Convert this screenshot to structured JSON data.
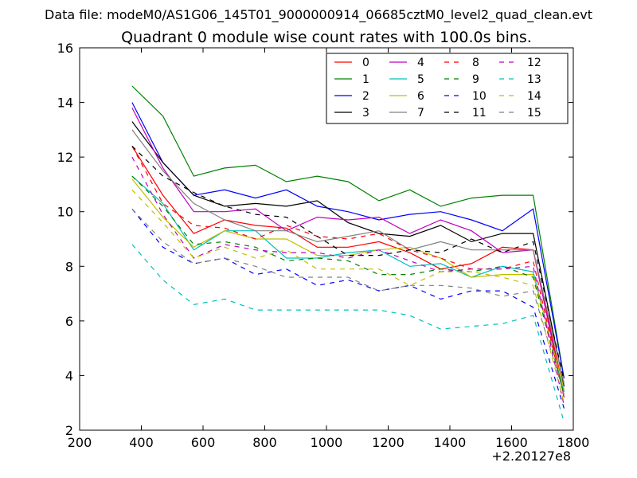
{
  "chart_data": {
    "type": "line",
    "suptitle": "Data file: modeM0/AS1G06_145T01_9000000914_06685cztM0_level2_quad_clean.evt",
    "title": "Quadrant 0 module wise count rates with 100.0s bins.",
    "xlabel": "",
    "ylabel": "",
    "x_offset_label": "+2.20127e8",
    "xlim": [
      200,
      1800
    ],
    "ylim": [
      2,
      16
    ],
    "x_ticks": [
      200,
      400,
      600,
      800,
      1000,
      1200,
      1400,
      1600,
      1800
    ],
    "y_ticks": [
      2,
      4,
      6,
      8,
      10,
      12,
      14,
      16
    ],
    "legend_position": "top-right",
    "legend_columns": 4,
    "x": [
      370,
      470,
      570,
      670,
      770,
      870,
      970,
      1070,
      1170,
      1270,
      1370,
      1470,
      1570,
      1670,
      1770
    ],
    "series": [
      {
        "name": "0",
        "color": "#ff0000",
        "dash": "solid",
        "values": [
          12.4,
          10.6,
          9.2,
          9.7,
          9.5,
          9.4,
          8.7,
          8.7,
          8.9,
          8.5,
          7.9,
          8.1,
          8.7,
          8.6,
          3.4
        ]
      },
      {
        "name": "1",
        "color": "#008000",
        "dash": "solid",
        "values": [
          14.6,
          13.5,
          11.3,
          11.6,
          11.7,
          11.1,
          11.3,
          11.1,
          10.4,
          10.8,
          10.2,
          10.5,
          10.6,
          10.6,
          3.9
        ]
      },
      {
        "name": "2",
        "color": "#0000ff",
        "dash": "solid",
        "values": [
          14.0,
          11.8,
          10.6,
          10.8,
          10.5,
          10.8,
          10.2,
          10.0,
          9.7,
          9.9,
          10.0,
          9.7,
          9.3,
          10.1,
          3.9
        ]
      },
      {
        "name": "3",
        "color": "#000000",
        "dash": "solid",
        "values": [
          13.3,
          11.8,
          10.6,
          10.2,
          10.3,
          10.2,
          10.4,
          9.6,
          9.2,
          9.1,
          9.5,
          8.9,
          9.2,
          9.2,
          3.6
        ]
      },
      {
        "name": "4",
        "color": "#bf00bf",
        "dash": "solid",
        "values": [
          13.8,
          11.6,
          10.0,
          10.0,
          10.1,
          9.3,
          9.8,
          9.7,
          9.8,
          9.2,
          9.7,
          9.3,
          8.5,
          8.6,
          3.2
        ]
      },
      {
        "name": "5",
        "color": "#00bfbf",
        "dash": "solid",
        "values": [
          11.3,
          10.3,
          8.6,
          9.3,
          9.3,
          8.3,
          8.3,
          8.5,
          8.6,
          8.0,
          8.1,
          7.6,
          8.0,
          7.8,
          3.4
        ]
      },
      {
        "name": "6",
        "color": "#bfbf00",
        "dash": "solid",
        "values": [
          11.2,
          9.8,
          8.7,
          9.3,
          9.0,
          9.0,
          8.4,
          8.4,
          8.6,
          8.7,
          8.3,
          7.6,
          7.7,
          7.7,
          3.5
        ]
      },
      {
        "name": "7",
        "color": "#808080",
        "dash": "solid",
        "values": [
          13.0,
          11.5,
          10.3,
          9.7,
          9.3,
          9.3,
          8.9,
          9.1,
          9.3,
          8.6,
          8.9,
          8.6,
          8.6,
          8.6,
          3.7
        ]
      },
      {
        "name": "8",
        "color": "#ff0000",
        "dash": "dashed",
        "values": [
          12.4,
          10.3,
          9.5,
          9.4,
          9.0,
          9.5,
          9.1,
          9.0,
          9.2,
          8.6,
          8.3,
          7.9,
          7.9,
          8.2,
          3.2
        ]
      },
      {
        "name": "9",
        "color": "#008000",
        "dash": "dashed",
        "values": [
          11.3,
          10.2,
          8.8,
          8.9,
          8.7,
          8.2,
          8.3,
          8.2,
          7.7,
          7.7,
          7.9,
          7.8,
          8.0,
          7.6,
          3.3
        ]
      },
      {
        "name": "10",
        "color": "#0000ff",
        "dash": "dashed",
        "values": [
          10.1,
          8.7,
          8.1,
          8.3,
          7.7,
          7.9,
          7.3,
          7.5,
          7.1,
          7.3,
          6.8,
          7.1,
          7.1,
          6.5,
          2.8
        ]
      },
      {
        "name": "11",
        "color": "#000000",
        "dash": "dashed",
        "values": [
          12.4,
          11.3,
          10.7,
          10.2,
          9.9,
          9.8,
          9.1,
          8.4,
          8.4,
          8.6,
          8.5,
          9.0,
          8.5,
          8.9,
          3.8
        ]
      },
      {
        "name": "12",
        "color": "#bf00bf",
        "dash": "dashed",
        "values": [
          12.0,
          9.9,
          8.3,
          8.8,
          8.6,
          8.5,
          8.5,
          8.3,
          8.6,
          8.2,
          7.8,
          7.9,
          7.9,
          8.0,
          2.9
        ]
      },
      {
        "name": "13",
        "color": "#00bfbf",
        "dash": "dashed",
        "values": [
          8.8,
          7.5,
          6.6,
          6.8,
          6.4,
          6.4,
          6.4,
          6.4,
          6.4,
          6.2,
          5.7,
          5.8,
          5.9,
          6.2,
          2.3
        ]
      },
      {
        "name": "14",
        "color": "#bfbf00",
        "dash": "dashed",
        "values": [
          10.8,
          9.6,
          8.3,
          8.7,
          8.3,
          8.6,
          7.9,
          7.9,
          7.9,
          7.3,
          7.8,
          7.8,
          7.6,
          7.3,
          3.0
        ]
      },
      {
        "name": "15",
        "color": "#808080",
        "dash": "dashed",
        "values": [
          10.1,
          8.9,
          8.1,
          8.3,
          8.0,
          7.6,
          7.6,
          7.6,
          7.1,
          7.3,
          7.3,
          7.2,
          6.9,
          7.1,
          3.3
        ]
      }
    ]
  }
}
